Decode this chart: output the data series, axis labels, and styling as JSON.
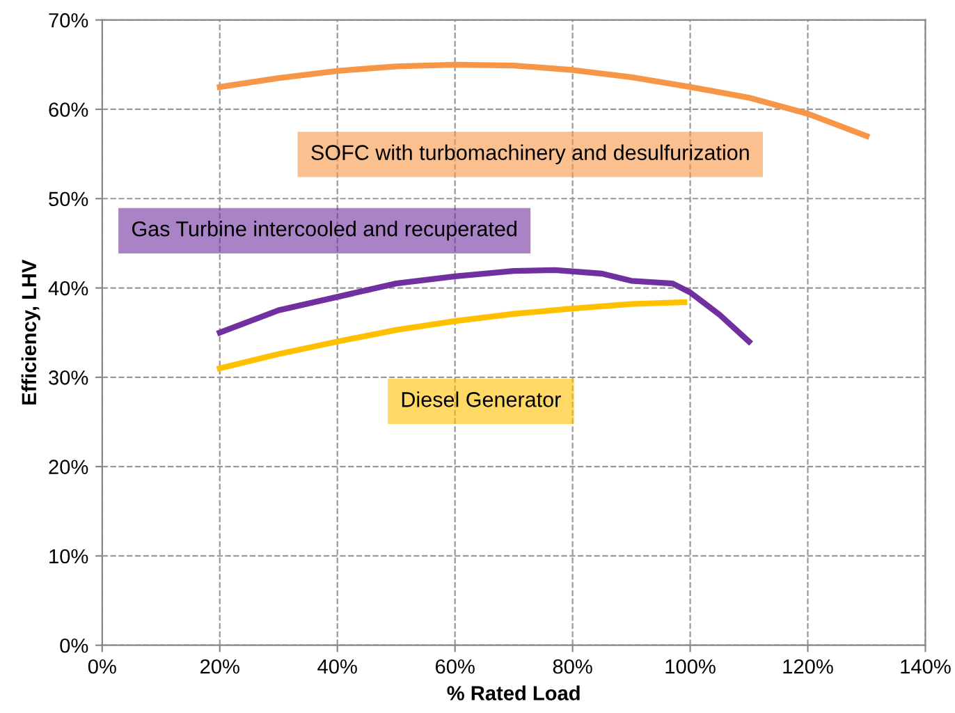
{
  "chart_data": {
    "type": "line",
    "xlabel": "% Rated Load",
    "ylabel": "Efficiency, LHV",
    "xlim": [
      0,
      140
    ],
    "ylim": [
      0,
      70
    ],
    "xticks": [
      {
        "value": 0,
        "label": "0%"
      },
      {
        "value": 20,
        "label": "20%"
      },
      {
        "value": 40,
        "label": "40%"
      },
      {
        "value": 60,
        "label": "60%"
      },
      {
        "value": 80,
        "label": "80%"
      },
      {
        "value": 100,
        "label": "100%"
      },
      {
        "value": 120,
        "label": "120%"
      },
      {
        "value": 140,
        "label": "140%"
      }
    ],
    "yticks": [
      {
        "value": 0,
        "label": "0%"
      },
      {
        "value": 10,
        "label": "10%"
      },
      {
        "value": 20,
        "label": "20%"
      },
      {
        "value": 30,
        "label": "30%"
      },
      {
        "value": 40,
        "label": "40%"
      },
      {
        "value": 50,
        "label": "50%"
      },
      {
        "value": 60,
        "label": "60%"
      },
      {
        "value": 70,
        "label": "70%"
      }
    ],
    "grid": true,
    "marker": "none",
    "line_style": "solid",
    "legend": false,
    "series": [
      {
        "name": "SOFC with turbomachinery and desulfurization",
        "color": "#f79646",
        "x": [
          20,
          30,
          40,
          50,
          60,
          70,
          80,
          90,
          100,
          110,
          120,
          130
        ],
        "values": [
          62.5,
          63.5,
          64.3,
          64.8,
          65,
          64.9,
          64.4,
          63.6,
          62.5,
          61.3,
          59.5,
          57
        ]
      },
      {
        "name": "Gas Turbine intercooled and recuperated",
        "color": "#7030a0",
        "x": [
          20,
          30,
          40,
          50,
          60,
          70,
          77,
          85,
          90,
          97,
          100,
          105,
          110
        ],
        "values": [
          35,
          37.5,
          39,
          40.5,
          41.3,
          41.9,
          42,
          41.6,
          40.8,
          40.5,
          39.5,
          37,
          34
        ]
      },
      {
        "name": "Diesel Generator",
        "color": "#ffc000",
        "x": [
          20,
          30,
          40,
          50,
          60,
          70,
          80,
          90,
          99
        ],
        "values": [
          31,
          32.6,
          34,
          35.3,
          36.3,
          37.1,
          37.7,
          38.2,
          38.4
        ]
      }
    ]
  }
}
